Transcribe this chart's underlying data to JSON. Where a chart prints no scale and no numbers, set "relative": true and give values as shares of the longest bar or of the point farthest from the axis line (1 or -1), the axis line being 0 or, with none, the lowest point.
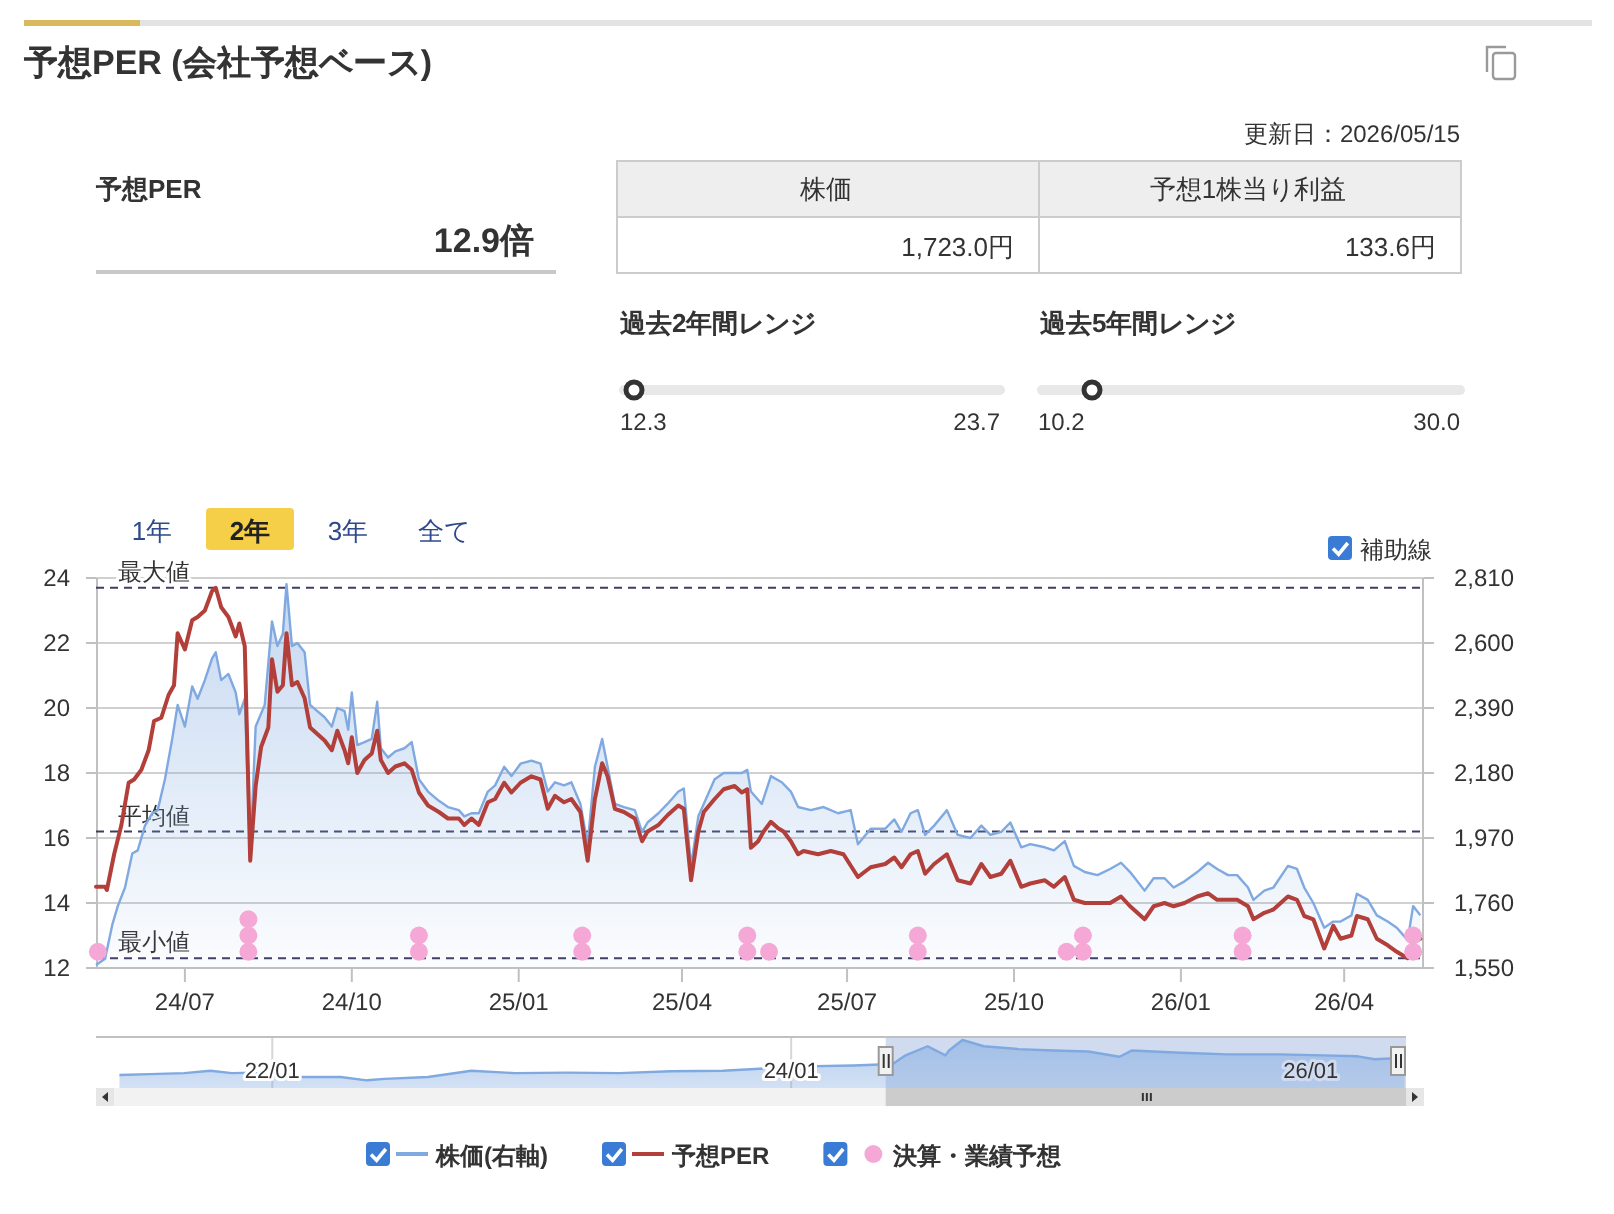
{
  "chart_data": [
    {
      "type": "other",
      "title": "予想PER (会社予想ベース)",
      "annotations": [
        "更新日：2026/05/15",
        "予想PER",
        "12.9倍",
        "株価",
        "予想1株当り利益",
        "1,723.0円",
        "133.6円"
      ]
    },
    {
      "type": "other",
      "title": "過去2年間レンジ",
      "annotations": [
        "12.3",
        "23.7"
      ]
    },
    {
      "type": "other",
      "title": "過去5年間レンジ",
      "annotations": [
        "10.2",
        "30.0"
      ]
    },
    {
      "type": "line",
      "series": [
        {
          "name": "株価(右軸)",
          "type": "area",
          "axis": "y2",
          "color": "#7fa9e0",
          "x": [
            "2024-05-13",
            "2024-05-18",
            "2024-05-22",
            "2024-05-25",
            "2024-05-29",
            "2024-06-02",
            "2024-06-05",
            "2024-06-09",
            "2024-06-13",
            "2024-06-16",
            "2024-06-20",
            "2024-06-24",
            "2024-06-27",
            "2024-07-01",
            "2024-07-05",
            "2024-07-08",
            "2024-07-12",
            "2024-07-16",
            "2024-07-18",
            "2024-07-21",
            "2024-07-25",
            "2024-07-29",
            "2024-07-31",
            "2024-08-03",
            "2024-08-06",
            "2024-08-09",
            "2024-08-14",
            "2024-08-18",
            "2024-08-21",
            "2024-08-24",
            "2024-08-26",
            "2024-08-29",
            "2024-09-01",
            "2024-09-05",
            "2024-09-08",
            "2024-09-12",
            "2024-09-16",
            "2024-09-20",
            "2024-09-23",
            "2024-09-27",
            "2024-09-29",
            "2024-10-01",
            "2024-10-04",
            "2024-10-08",
            "2024-10-12",
            "2024-10-15",
            "2024-10-17",
            "2024-10-21",
            "2024-10-25",
            "2024-10-30",
            "2024-11-03",
            "2024-11-07",
            "2024-11-12",
            "2024-11-18",
            "2024-11-23",
            "2024-11-29",
            "2024-12-02",
            "2024-12-06",
            "2024-12-10",
            "2024-12-15",
            "2024-12-19",
            "2024-12-24",
            "2024-12-28",
            "2025-01-02",
            "2025-01-08",
            "2025-01-13",
            "2025-01-17",
            "2025-01-21",
            "2025-01-26",
            "2025-01-30",
            "2025-02-04",
            "2025-02-08",
            "2025-02-12",
            "2025-02-16",
            "2025-02-19",
            "2025-02-23",
            "2025-02-28",
            "2025-03-06",
            "2025-03-10",
            "2025-03-13",
            "2025-03-19",
            "2025-03-24",
            "2025-03-30",
            "2025-04-02",
            "2025-04-06",
            "2025-04-10",
            "2025-04-13",
            "2025-04-19",
            "2025-04-24",
            "2025-04-30",
            "2025-05-04",
            "2025-05-07",
            "2025-05-09",
            "2025-05-15",
            "2025-05-20",
            "2025-05-26",
            "2025-05-31",
            "2025-06-04",
            "2025-06-11",
            "2025-06-18",
            "2025-06-26",
            "2025-07-03",
            "2025-07-07",
            "2025-07-14",
            "2025-07-22",
            "2025-07-27",
            "2025-07-31",
            "2025-08-05",
            "2025-08-09",
            "2025-08-13",
            "2025-08-18",
            "2025-08-25",
            "2025-08-31",
            "2025-09-07",
            "2025-09-13",
            "2025-09-18",
            "2025-09-24",
            "2025-09-29",
            "2025-10-05",
            "2025-10-10",
            "2025-10-18",
            "2025-10-23",
            "2025-10-29",
            "2025-11-03",
            "2025-11-09",
            "2025-11-16",
            "2025-11-23",
            "2025-11-29",
            "2025-12-04",
            "2025-12-12",
            "2025-12-17",
            "2025-12-23",
            "2025-12-28",
            "2026-01-03",
            "2026-01-10",
            "2026-01-16",
            "2026-01-21",
            "2026-01-27",
            "2026-02-01",
            "2026-02-07",
            "2026-02-10",
            "2026-02-16",
            "2026-02-21",
            "2026-03-01",
            "2026-03-06",
            "2026-03-10",
            "2026-03-15",
            "2026-03-21",
            "2026-03-26",
            "2026-03-30",
            "2026-04-05",
            "2026-04-08",
            "2026-04-14",
            "2026-04-19",
            "2026-04-25",
            "2026-04-30",
            "2026-05-06",
            "2026-05-09",
            "2026-05-13"
          ],
          "values": [
            1560,
            1580,
            1690,
            1750,
            1810,
            1920,
            1930,
            2010,
            2050,
            2060,
            2160,
            2290,
            2400,
            2330,
            2460,
            2420,
            2480,
            2550,
            2570,
            2480,
            2500,
            2440,
            2370,
            2420,
            1910,
            2330,
            2400,
            2670,
            2590,
            2630,
            2790,
            2590,
            2600,
            2570,
            2400,
            2380,
            2360,
            2330,
            2390,
            2380,
            2320,
            2440,
            2270,
            2280,
            2290,
            2410,
            2260,
            2230,
            2250,
            2260,
            2280,
            2160,
            2120,
            2090,
            2070,
            2060,
            2040,
            2050,
            2050,
            2120,
            2140,
            2200,
            2170,
            2210,
            2220,
            2210,
            2120,
            2150,
            2140,
            2150,
            2080,
            1950,
            2200,
            2290,
            2200,
            2080,
            2070,
            2060,
            1990,
            2020,
            2050,
            2080,
            2120,
            2130,
            1880,
            2040,
            2080,
            2160,
            2180,
            2180,
            2180,
            2190,
            2120,
            2080,
            2170,
            2150,
            2120,
            2070,
            2060,
            2070,
            2050,
            2060,
            1950,
            2000,
            2000,
            2030,
            1990,
            2050,
            2060,
            1980,
            2010,
            2060,
            1980,
            1970,
            2010,
            1980,
            1990,
            2020,
            1940,
            1950,
            1940,
            1930,
            1960,
            1880,
            1860,
            1850,
            1870,
            1890,
            1860,
            1800,
            1840,
            1840,
            1810,
            1830,
            1860,
            1890,
            1870,
            1850,
            1850,
            1810,
            1770,
            1800,
            1810,
            1880,
            1870,
            1810,
            1760,
            1680,
            1700,
            1700,
            1720,
            1790,
            1770,
            1720,
            1700,
            1680,
            1640,
            1750,
            1720
          ]
        },
        {
          "name": "予想PER",
          "type": "line",
          "color": "#b23f3a",
          "x": [
            "2024-05-13",
            "2024-05-18",
            "2024-05-19",
            "2024-05-23",
            "2024-05-27",
            "2024-05-31",
            "2024-06-03",
            "2024-06-07",
            "2024-06-11",
            "2024-06-14",
            "2024-06-18",
            "2024-06-22",
            "2024-06-25",
            "2024-06-27",
            "2024-07-01",
            "2024-07-05",
            "2024-07-08",
            "2024-07-12",
            "2024-07-16",
            "2024-07-18",
            "2024-07-21",
            "2024-07-25",
            "2024-07-29",
            "2024-07-31",
            "2024-08-03",
            "2024-08-06",
            "2024-08-09",
            "2024-08-12",
            "2024-08-16",
            "2024-08-18",
            "2024-08-21",
            "2024-08-24",
            "2024-08-26",
            "2024-08-29",
            "2024-09-01",
            "2024-09-05",
            "2024-09-08",
            "2024-09-12",
            "2024-09-16",
            "2024-09-20",
            "2024-09-23",
            "2024-09-27",
            "2024-09-29",
            "2024-10-01",
            "2024-10-04",
            "2024-10-08",
            "2024-10-12",
            "2024-10-15",
            "2024-10-17",
            "2024-10-21",
            "2024-10-25",
            "2024-10-30",
            "2024-11-03",
            "2024-11-07",
            "2024-11-12",
            "2024-11-18",
            "2024-11-23",
            "2024-11-29",
            "2024-12-02",
            "2024-12-06",
            "2024-12-10",
            "2024-12-15",
            "2024-12-19",
            "2024-12-24",
            "2024-12-28",
            "2025-01-02",
            "2025-01-08",
            "2025-01-13",
            "2025-01-17",
            "2025-01-21",
            "2025-01-26",
            "2025-01-30",
            "2025-02-04",
            "2025-02-08",
            "2025-02-12",
            "2025-02-16",
            "2025-02-19",
            "2025-02-23",
            "2025-02-28",
            "2025-03-06",
            "2025-03-10",
            "2025-03-13",
            "2025-03-19",
            "2025-03-24",
            "2025-03-30",
            "2025-04-02",
            "2025-04-06",
            "2025-04-10",
            "2025-04-13",
            "2025-04-19",
            "2025-04-24",
            "2025-04-30",
            "2025-05-04",
            "2025-05-07",
            "2025-05-09",
            "2025-05-13",
            "2025-05-16",
            "2025-05-20",
            "2025-05-24",
            "2025-05-27",
            "2025-05-31",
            "2025-06-04",
            "2025-06-07",
            "2025-06-15",
            "2025-06-22",
            "2025-06-29",
            "2025-07-07",
            "2025-07-14",
            "2025-07-22",
            "2025-07-27",
            "2025-07-31",
            "2025-08-05",
            "2025-08-09",
            "2025-08-13",
            "2025-08-18",
            "2025-08-25",
            "2025-08-31",
            "2025-09-07",
            "2025-09-13",
            "2025-09-18",
            "2025-09-24",
            "2025-09-29",
            "2025-10-05",
            "2025-10-10",
            "2025-10-18",
            "2025-10-23",
            "2025-10-29",
            "2025-11-03",
            "2025-11-09",
            "2025-11-16",
            "2025-11-23",
            "2025-11-29",
            "2025-12-04",
            "2025-12-12",
            "2025-12-17",
            "2025-12-23",
            "2025-12-28",
            "2026-01-03",
            "2026-01-10",
            "2026-01-16",
            "2026-01-21",
            "2026-01-27",
            "2026-02-01",
            "2026-02-07",
            "2026-02-10",
            "2026-02-16",
            "2026-02-21",
            "2026-03-01",
            "2026-03-06",
            "2026-03-10",
            "2026-03-15",
            "2026-03-21",
            "2026-03-26",
            "2026-03-30",
            "2026-04-05",
            "2026-04-08",
            "2026-04-14",
            "2026-04-19",
            "2026-04-25",
            "2026-04-30",
            "2026-05-06",
            "2026-05-09",
            "2026-05-13"
          ],
          "values": [
            14.5,
            14.5,
            14.4,
            15.5,
            16.4,
            17.7,
            17.8,
            18.1,
            18.7,
            19.6,
            19.7,
            20.4,
            20.7,
            22.3,
            21.8,
            22.7,
            22.8,
            23.0,
            23.6,
            23.7,
            23.1,
            22.8,
            22.2,
            22.6,
            21.9,
            15.3,
            17.6,
            18.8,
            19.4,
            21.5,
            20.5,
            20.7,
            22.3,
            20.7,
            20.8,
            20.3,
            19.4,
            19.2,
            19.0,
            18.7,
            19.3,
            18.7,
            18.3,
            19.1,
            18.0,
            18.4,
            18.6,
            19.3,
            18.4,
            18.0,
            18.2,
            18.3,
            18.1,
            17.4,
            17.0,
            16.8,
            16.6,
            16.6,
            16.4,
            16.6,
            16.4,
            17.1,
            17.2,
            17.7,
            17.4,
            17.7,
            17.9,
            17.8,
            16.9,
            17.3,
            17.1,
            17.2,
            16.8,
            15.3,
            17.2,
            18.3,
            17.9,
            16.9,
            16.8,
            16.6,
            15.9,
            16.2,
            16.4,
            16.7,
            17.0,
            16.9,
            14.7,
            16.2,
            16.8,
            17.2,
            17.5,
            17.6,
            17.4,
            17.5,
            15.7,
            15.9,
            16.2,
            16.5,
            16.3,
            16.2,
            15.9,
            15.5,
            15.6,
            15.5,
            15.6,
            15.5,
            14.8,
            15.1,
            15.2,
            15.4,
            15.1,
            15.5,
            15.6,
            14.9,
            15.2,
            15.5,
            14.7,
            14.6,
            15.2,
            14.8,
            14.9,
            15.3,
            14.5,
            14.6,
            14.7,
            14.5,
            14.8,
            14.1,
            14.0,
            14.0,
            14.0,
            14.2,
            13.9,
            13.5,
            13.9,
            14.0,
            13.9,
            14.0,
            14.2,
            14.3,
            14.1,
            14.1,
            14.1,
            13.9,
            13.5,
            13.7,
            13.8,
            14.2,
            14.1,
            13.6,
            13.5,
            12.6,
            13.3,
            12.9,
            13.0,
            13.6,
            13.5,
            12.9,
            12.7,
            12.5,
            12.3,
            12.8,
            12.9
          ]
        },
        {
          "name": "決算・業績予想",
          "type": "scatter",
          "marker": "circle",
          "color": "#f5a8d6",
          "x": [
            "2024-05-14",
            "2024-08-05",
            "2024-08-05",
            "2024-08-05",
            "2024-11-07",
            "2024-11-07",
            "2025-02-05",
            "2025-02-05",
            "2025-05-07",
            "2025-05-07",
            "2025-05-19",
            "2025-08-09",
            "2025-08-09",
            "2025-10-30",
            "2025-11-08",
            "2025-11-08",
            "2026-02-04",
            "2026-02-04",
            "2026-05-09",
            "2026-05-09"
          ],
          "values": [
            12.5,
            12.5,
            13,
            13.5,
            12.5,
            13,
            12.5,
            13,
            12.5,
            13,
            12.5,
            12.5,
            13,
            12.5,
            12.5,
            13,
            12.5,
            13,
            12.5,
            13
          ]
        }
      ],
      "xlim": [
        "2024-05-13",
        "2026-05-15"
      ],
      "xticks": [
        {
          "value": "2024-07-01",
          "label": "24/07"
        },
        {
          "value": "2024-10-01",
          "label": "24/10"
        },
        {
          "value": "2025-01-01",
          "label": "25/01"
        },
        {
          "value": "2025-04-01",
          "label": "25/04"
        },
        {
          "value": "2025-07-01",
          "label": "25/07"
        },
        {
          "value": "2025-10-01",
          "label": "25/10"
        },
        {
          "value": "2026-01-01",
          "label": "26/01"
        },
        {
          "value": "2026-04-01",
          "label": "26/04"
        }
      ],
      "ylim": [
        12,
        24
      ],
      "yticks": [
        12,
        14,
        16,
        18,
        20,
        22,
        24
      ],
      "y2lim": [
        1550,
        2810
      ],
      "y2ticks": [
        {
          "value": 1550,
          "label": "1,550"
        },
        {
          "value": 1760,
          "label": "1,760"
        },
        {
          "value": 1970,
          "label": "1,970"
        },
        {
          "value": 2180,
          "label": "2,180"
        },
        {
          "value": 2390,
          "label": "2,390"
        },
        {
          "value": 2600,
          "label": "2,600"
        },
        {
          "value": 2810,
          "label": "2,810"
        }
      ],
      "ref_lines": [
        {
          "axis": "y",
          "value": 23.7,
          "label": "最大値",
          "color": "#3d3d66",
          "line_style": "dashed"
        },
        {
          "axis": "y",
          "value": 16.2,
          "label": "平均値",
          "color": "#3d3d66",
          "line_style": "dashed"
        },
        {
          "axis": "y",
          "value": 12.3,
          "label": "最小値",
          "color": "#3d3d66",
          "line_style": "dashed"
        }
      ],
      "grid": "y",
      "legend": "bottom",
      "annotations": [
        "1年",
        "2年",
        "3年",
        "全て",
        "補助線"
      ]
    },
    {
      "type": "area",
      "relative": true,
      "color": "#7fa9e0",
      "x": [
        "2021-05-31",
        "2021-07-12",
        "2021-08-30",
        "2021-10-06",
        "2021-11-05",
        "2021-12-06",
        "2022-01-12",
        "2022-04-07",
        "2022-05-14",
        "2022-06-08",
        "2022-08-08",
        "2022-10-08",
        "2022-12-08",
        "2023-02-19",
        "2023-05-04",
        "2023-07-16",
        "2023-09-27",
        "2023-11-27",
        "2024-01-15",
        "2024-03-29",
        "2024-05-23",
        "2024-06-10",
        "2024-07-11",
        "2024-08-05",
        "2024-08-10",
        "2024-08-29",
        "2024-09-28",
        "2024-11-16",
        "2025-01-04",
        "2025-02-22",
        "2025-04-07",
        "2025-04-24",
        "2025-06-24",
        "2025-09-05",
        "2025-11-18",
        "2026-01-18",
        "2026-03-08",
        "2026-04-01",
        "2026-05-13"
      ],
      "values": [
        0.27,
        0.29,
        0.31,
        0.36,
        0.31,
        0.32,
        0.23,
        0.23,
        0.16,
        0.19,
        0.23,
        0.36,
        0.31,
        0.32,
        0.31,
        0.35,
        0.36,
        0.41,
        0.45,
        0.47,
        0.5,
        0.68,
        0.87,
        0.68,
        0.78,
        1.0,
        0.87,
        0.81,
        0.78,
        0.76,
        0.65,
        0.78,
        0.74,
        0.7,
        0.7,
        0.68,
        0.66,
        0.6,
        0.63
      ],
      "xlim": [
        "2021-04-28",
        "2026-05-15"
      ],
      "xticks": [
        {
          "value": "2022-01-01",
          "label": "22/01"
        },
        {
          "value": "2024-01-01",
          "label": "24/01"
        },
        {
          "value": "2026-01-01",
          "label": "26/01"
        }
      ],
      "grid": "x",
      "bands": [
        {
          "axis": "x",
          "from": "2024-05-13",
          "to": "2026-05-15",
          "color": "#d0dbef"
        }
      ]
    }
  ]
}
